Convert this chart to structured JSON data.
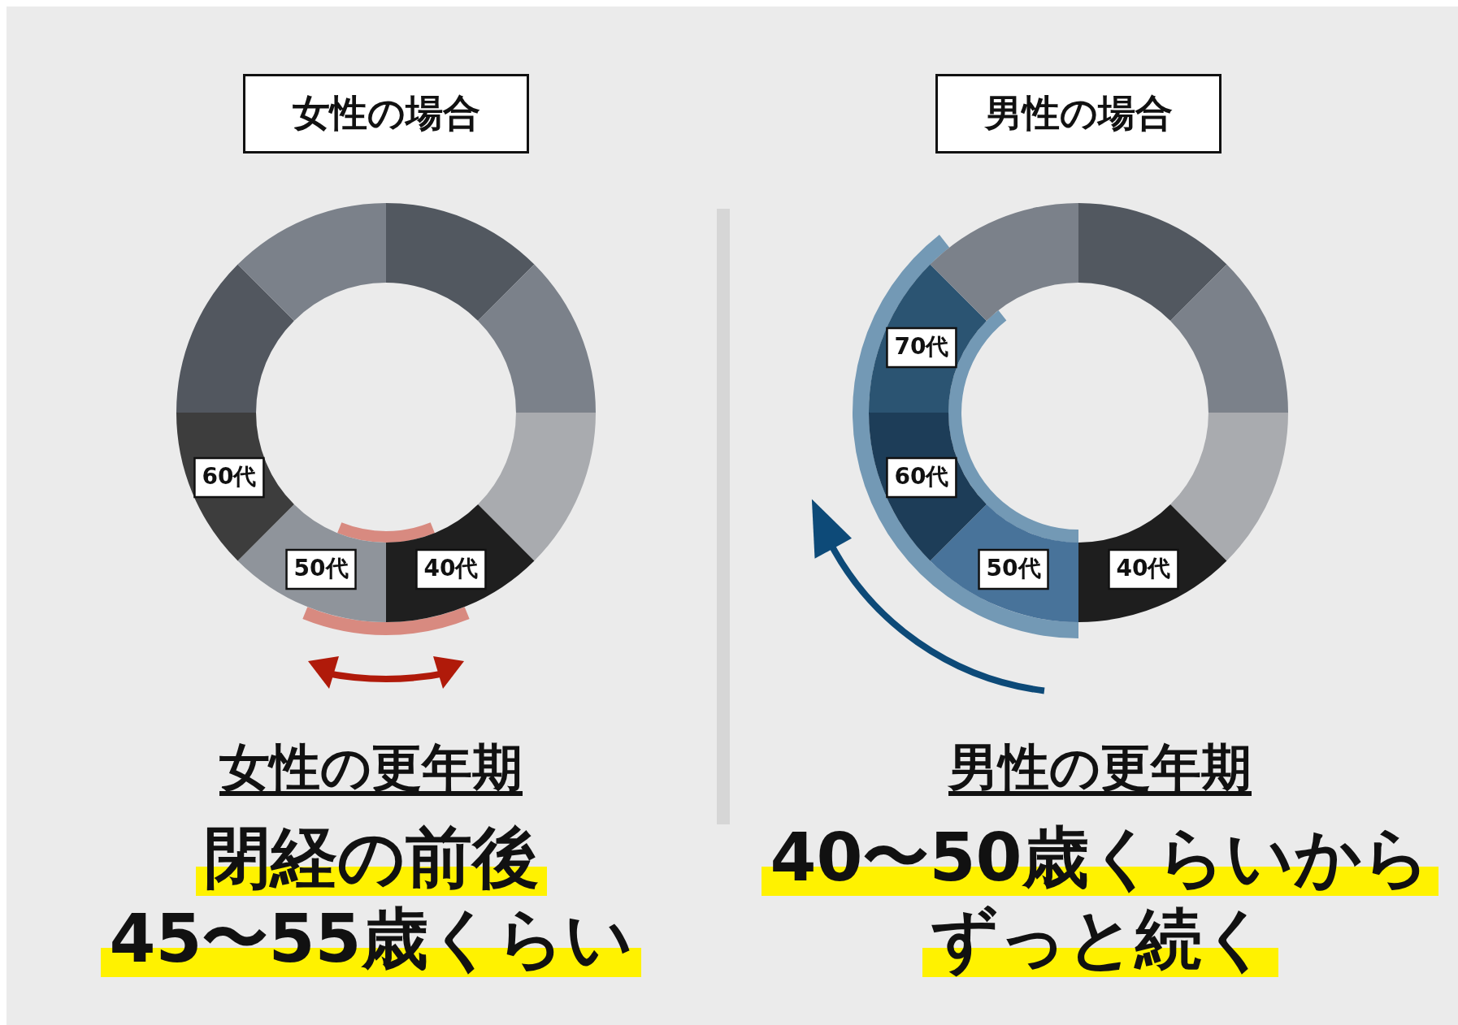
{
  "chart_data": [
    {
      "type": "donut",
      "title": "女性の場合",
      "categories": [
        null,
        null,
        null,
        "40代",
        "50代",
        "60代",
        null,
        null
      ],
      "values": [
        12.5,
        12.5,
        12.5,
        12.5,
        12.5,
        12.5,
        12.5,
        12.5
      ],
      "colors": [
        "#525860",
        "#7b818a",
        "#a9abaf",
        "#1f1f1f",
        "#8f949b",
        "#3d3d3d",
        "#52575f",
        "#7b818a"
      ],
      "legend": false,
      "annotations": [
        "女性の更年期",
        "閉経の前後",
        "45〜55歳くらい"
      ]
    },
    {
      "type": "donut",
      "title": "男性の場合",
      "categories": [
        null,
        null,
        null,
        "40代",
        "50代",
        "60代",
        "70代",
        null
      ],
      "values": [
        12.5,
        12.5,
        12.5,
        12.5,
        12.5,
        12.5,
        12.5,
        12.5
      ],
      "colors": [
        "#525860",
        "#7b818a",
        "#a9abaf",
        "#1e1e1e",
        "#48739a",
        "#1d3d58",
        "#2b5472",
        "#7b818a"
      ],
      "legend": false,
      "annotations": [
        "男性の更年期",
        "40〜50歳くらいから",
        "ずっと続く"
      ]
    }
  ]
}
